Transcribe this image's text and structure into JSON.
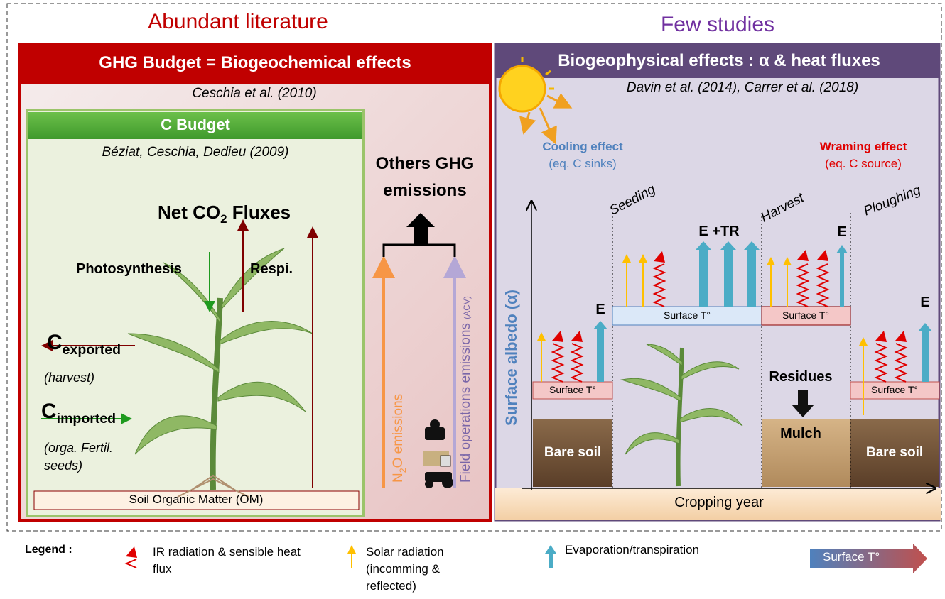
{
  "headings": {
    "left": "Abundant literature",
    "right": "Few studies"
  },
  "left_panel": {
    "title": "GHG Budget = Biogeochemical effects",
    "reference": "Ceschia et al. (2010)"
  },
  "c_budget": {
    "title": "C Budget",
    "reference": "Béziat, Ceschia, Dedieu (2009)",
    "net_flux": {
      "text": "Net CO",
      "subscript": "2",
      "suffix": "Fluxes"
    },
    "photosynthesis": "Photosynthesis",
    "respiration": "Respi.",
    "exported": {
      "symbol": "C",
      "subscript": "exported",
      "note": "(harvest)"
    },
    "imported": {
      "symbol": "C",
      "subscript": "imported",
      "note": [
        "(orga. Fertil.",
        "seeds)"
      ]
    },
    "soil": "Soil Organic Matter (OM)"
  },
  "ghg": {
    "title": [
      "Others GHG",
      "emissions"
    ],
    "n2o": {
      "text": "N",
      "subscript": "2",
      "suffix": "O emissions"
    },
    "field": {
      "text": "Field operations emissions",
      "note": "(ACV)"
    }
  },
  "right_panel": {
    "title": "Biogeophysical effects : α & heat fluxes",
    "reference": "Davin et al. (2014), Carrer et al. (2018)",
    "cooling": {
      "title": "Cooling effect",
      "note": "(eq. C sinks)"
    },
    "warming": {
      "title": "Wraming effect",
      "note": "(eq. C source)"
    },
    "y_axis": "Surface albedo (α)",
    "x_axis": "Cropping year",
    "stages": [
      "Seeding",
      "Harvest",
      "Ploughing"
    ],
    "fluxes": [
      "E",
      "E +TR",
      "E",
      "E"
    ],
    "surface": [
      "Surface T°",
      "Surface T°",
      "Surface T°",
      "Surface T°"
    ],
    "soil_labels": [
      "Bare soil",
      "Residues",
      "Mulch",
      "Bare soil"
    ]
  },
  "legend": {
    "title": "Legend :",
    "items": [
      "IR radiation & sensible heat flux",
      "Solar radiation (incomming & reflected)",
      "Evaporation/transpiration",
      "Surface T°"
    ]
  }
}
